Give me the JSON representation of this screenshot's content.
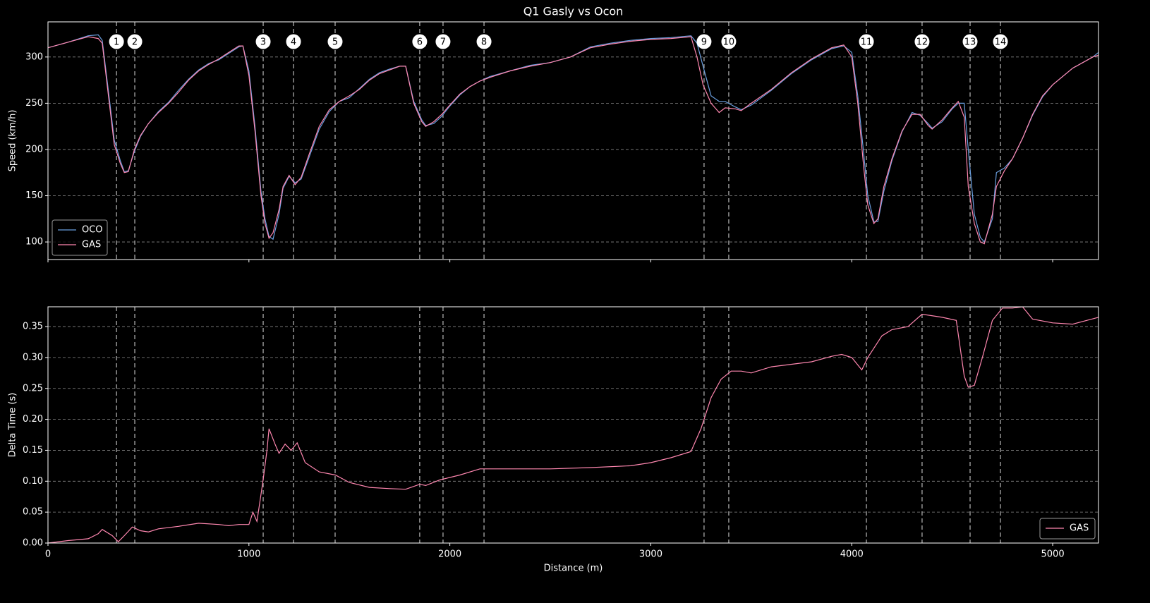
{
  "chart_data": [
    {
      "type": "line",
      "title": "Q1 Gasly vs Ocon",
      "ylabel": "Speed (km/h)",
      "xlim": [
        0,
        5228
      ],
      "xticks": [
        0,
        1000,
        2000,
        3000,
        4000,
        5000
      ],
      "ylim": [
        81,
        338
      ],
      "yticks": [
        100,
        150,
        200,
        250,
        300
      ],
      "grid": true,
      "legend": "lower left",
      "corners": [
        {
          "number": 1,
          "distance": 341
        },
        {
          "number": 2,
          "distance": 432
        },
        {
          "number": 3,
          "distance": 1071
        },
        {
          "number": 4,
          "distance": 1222
        },
        {
          "number": 5,
          "distance": 1429
        },
        {
          "number": 6,
          "distance": 1850
        },
        {
          "number": 7,
          "distance": 1966
        },
        {
          "number": 8,
          "distance": 2170
        },
        {
          "number": 9,
          "distance": 3265
        },
        {
          "number": 10,
          "distance": 3388
        },
        {
          "number": 11,
          "distance": 4073
        },
        {
          "number": 12,
          "distance": 4350
        },
        {
          "number": 13,
          "distance": 4589
        },
        {
          "number": 14,
          "distance": 4740
        }
      ],
      "x": [
        0,
        100,
        200,
        250,
        270,
        300,
        330,
        360,
        380,
        400,
        430,
        460,
        500,
        550,
        600,
        650,
        700,
        750,
        800,
        850,
        900,
        950,
        970,
        1000,
        1030,
        1060,
        1080,
        1100,
        1120,
        1150,
        1170,
        1200,
        1230,
        1260,
        1300,
        1350,
        1400,
        1450,
        1500,
        1550,
        1600,
        1650,
        1700,
        1750,
        1780,
        1820,
        1860,
        1880,
        1920,
        1960,
        2000,
        2050,
        2100,
        2150,
        2200,
        2300,
        2400,
        2500,
        2600,
        2700,
        2800,
        2900,
        3000,
        3100,
        3200,
        3230,
        3260,
        3300,
        3340,
        3370,
        3420,
        3450,
        3500,
        3600,
        3700,
        3800,
        3900,
        3960,
        4000,
        4030,
        4060,
        4080,
        4110,
        4130,
        4160,
        4200,
        4250,
        4300,
        4340,
        4380,
        4400,
        4450,
        4500,
        4530,
        4560,
        4580,
        4610,
        4640,
        4660,
        4700,
        4720,
        4760,
        4800,
        4850,
        4900,
        4950,
        5000,
        5100,
        5200,
        5228
      ],
      "series": [
        {
          "name": "OCO",
          "color": "#6a9fe0",
          "values": [
            310,
            316,
            323,
            324,
            318,
            265,
            210,
            188,
            176,
            177,
            198,
            214,
            228,
            241,
            251,
            264,
            276,
            286,
            293,
            297,
            304,
            311,
            312,
            285,
            225,
            155,
            125,
            106,
            103,
            130,
            158,
            171,
            164,
            168,
            192,
            222,
            241,
            252,
            256,
            266,
            276,
            283,
            287,
            290,
            290,
            252,
            232,
            226,
            228,
            236,
            247,
            259,
            268,
            274,
            279,
            285,
            291,
            294,
            300,
            311,
            315,
            318,
            320,
            321,
            323,
            315,
            290,
            258,
            252,
            252,
            246,
            243,
            248,
            264,
            282,
            297,
            309,
            312,
            305,
            258,
            195,
            150,
            122,
            122,
            155,
            188,
            219,
            240,
            237,
            228,
            223,
            230,
            244,
            250,
            250,
            200,
            130,
            105,
            100,
            125,
            175,
            180,
            190,
            212,
            237,
            257,
            270,
            288,
            300,
            305
          ]
        },
        {
          "name": "GAS",
          "color": "#ff87b0",
          "values": [
            310,
            316,
            322,
            320,
            315,
            260,
            205,
            185,
            175,
            176,
            200,
            215,
            228,
            240,
            250,
            262,
            275,
            285,
            292,
            298,
            305,
            312,
            312,
            280,
            220,
            150,
            120,
            104,
            110,
            135,
            160,
            172,
            162,
            170,
            195,
            225,
            243,
            252,
            258,
            265,
            275,
            282,
            286,
            290,
            290,
            250,
            230,
            225,
            230,
            238,
            248,
            260,
            268,
            274,
            278,
            285,
            290,
            294,
            300,
            310,
            314,
            317,
            319,
            320,
            322,
            300,
            270,
            250,
            240,
            245,
            244,
            242,
            250,
            265,
            283,
            298,
            310,
            313,
            300,
            250,
            180,
            140,
            120,
            125,
            160,
            190,
            220,
            238,
            238,
            226,
            222,
            232,
            245,
            252,
            235,
            160,
            120,
            100,
            98,
            130,
            160,
            177,
            190,
            212,
            238,
            258,
            270,
            288,
            300,
            302
          ]
        }
      ]
    },
    {
      "type": "line",
      "xlabel": "Distance (m)",
      "ylabel": "Delta Time (s)",
      "xlim": [
        0,
        5228
      ],
      "xticks": [
        0,
        1000,
        2000,
        3000,
        4000,
        5000
      ],
      "ylim": [
        0,
        0.382
      ],
      "yticks": [
        {
          "value": 0,
          "label": "0.00"
        },
        0.05,
        {
          "value": 0.1,
          "label": "0.10"
        },
        0.15,
        {
          "value": 0.2,
          "label": "0.20"
        },
        0.25,
        {
          "value": 0.3,
          "label": "0.30"
        },
        0.35
      ],
      "grid": true,
      "legend": "lower right",
      "x": [
        0,
        100,
        200,
        250,
        270,
        320,
        350,
        380,
        420,
        460,
        500,
        550,
        650,
        750,
        850,
        900,
        950,
        1000,
        1020,
        1040,
        1070,
        1090,
        1100,
        1130,
        1150,
        1180,
        1210,
        1240,
        1280,
        1350,
        1430,
        1500,
        1600,
        1700,
        1780,
        1850,
        1880,
        1950,
        2050,
        2150,
        2300,
        2500,
        2700,
        2900,
        3000,
        3100,
        3200,
        3250,
        3300,
        3350,
        3400,
        3450,
        3500,
        3600,
        3800,
        3900,
        3950,
        4000,
        4050,
        4080,
        4120,
        4150,
        4200,
        4280,
        4350,
        4450,
        4520,
        4560,
        4580,
        4610,
        4650,
        4700,
        4750,
        4800,
        4850,
        4900,
        5000,
        5100,
        5228
      ],
      "series": [
        {
          "name": "GAS",
          "color": "#ff87b0",
          "values": [
            0,
            0.004,
            0.007,
            0.015,
            0.022,
            0.012,
            0.002,
            0.012,
            0.026,
            0.02,
            0.018,
            0.023,
            0.027,
            0.032,
            0.03,
            0.028,
            0.03,
            0.03,
            0.05,
            0.035,
            0.1,
            0.15,
            0.185,
            0.16,
            0.145,
            0.16,
            0.15,
            0.162,
            0.13,
            0.115,
            0.11,
            0.098,
            0.09,
            0.088,
            0.087,
            0.095,
            0.093,
            0.102,
            0.11,
            0.12,
            0.12,
            0.12,
            0.122,
            0.125,
            0.13,
            0.138,
            0.148,
            0.185,
            0.235,
            0.265,
            0.278,
            0.278,
            0.275,
            0.285,
            0.293,
            0.302,
            0.305,
            0.3,
            0.28,
            0.3,
            0.32,
            0.335,
            0.345,
            0.35,
            0.37,
            0.365,
            0.36,
            0.27,
            0.252,
            0.255,
            0.3,
            0.36,
            0.38,
            0.38,
            0.382,
            0.362,
            0.356,
            0.354,
            0.365
          ]
        }
      ]
    }
  ]
}
